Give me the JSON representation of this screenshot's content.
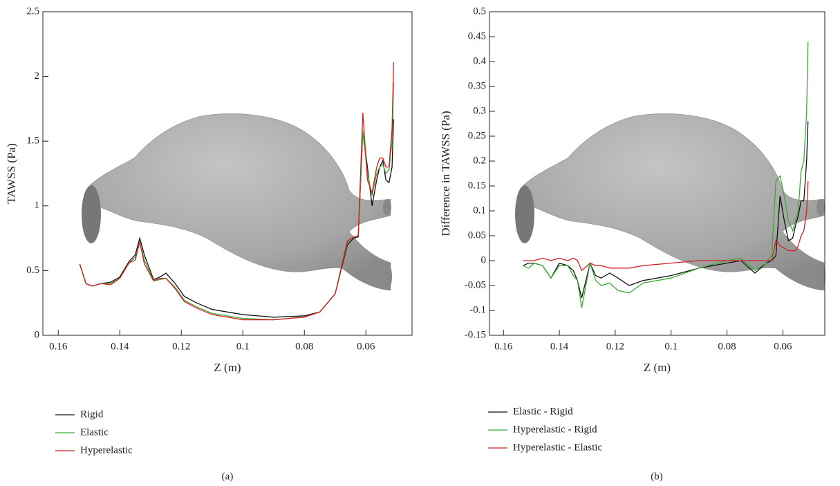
{
  "chart_data": [
    {
      "type": "line",
      "caption": "(a)",
      "x_label": "Z (m)",
      "y_label": "TAWSS (Pa)",
      "xlim": [
        0.165,
        0.045
      ],
      "xticks": [
        0.16,
        0.14,
        0.12,
        0.1,
        0.08,
        0.06
      ],
      "ylim": [
        0,
        2.5
      ],
      "yticks": [
        0,
        0.5,
        1,
        1.5,
        2,
        2.5
      ],
      "x": [
        0.153,
        0.151,
        0.149,
        0.146,
        0.143,
        0.14,
        0.137,
        0.135,
        0.1335,
        0.132,
        0.129,
        0.127,
        0.125,
        0.122,
        0.119,
        0.115,
        0.11,
        0.1,
        0.09,
        0.08,
        0.075,
        0.07,
        0.066,
        0.064,
        0.0625,
        0.061,
        0.0595,
        0.058,
        0.0565,
        0.0555,
        0.0545,
        0.0535,
        0.0525,
        0.0515,
        0.051
      ],
      "series": [
        {
          "name": "Rigid",
          "color": "#111111",
          "values": [
            0.55,
            0.4,
            0.38,
            0.4,
            0.41,
            0.45,
            0.57,
            0.62,
            0.75,
            0.62,
            0.43,
            0.45,
            0.48,
            0.4,
            0.3,
            0.25,
            0.2,
            0.16,
            0.14,
            0.15,
            0.18,
            0.32,
            0.7,
            0.75,
            0.76,
            1.57,
            1.3,
            1.0,
            1.2,
            1.3,
            1.35,
            1.2,
            1.18,
            1.3,
            1.67
          ]
        },
        {
          "name": "Elastic",
          "color": "#3aaa35",
          "values": [
            0.55,
            0.4,
            0.38,
            0.4,
            0.4,
            0.44,
            0.56,
            0.6,
            0.72,
            0.58,
            0.42,
            0.43,
            0.44,
            0.37,
            0.27,
            0.22,
            0.17,
            0.13,
            0.12,
            0.14,
            0.18,
            0.32,
            0.72,
            0.76,
            0.77,
            1.58,
            1.25,
            1.08,
            1.25,
            1.3,
            1.32,
            1.25,
            1.28,
            1.5,
            1.95
          ]
        },
        {
          "name": "Hyperelastic",
          "color": "#d42020",
          "values": [
            0.55,
            0.4,
            0.38,
            0.4,
            0.39,
            0.44,
            0.56,
            0.58,
            0.72,
            0.55,
            0.42,
            0.44,
            0.44,
            0.36,
            0.26,
            0.21,
            0.16,
            0.12,
            0.12,
            0.14,
            0.18,
            0.32,
            0.73,
            0.76,
            0.77,
            1.72,
            1.2,
            1.1,
            1.3,
            1.37,
            1.37,
            1.3,
            1.3,
            1.6,
            2.11
          ]
        }
      ]
    },
    {
      "type": "line",
      "caption": "(b)",
      "x_label": "Z (m)",
      "y_label": "Difference in TAWSS (Pa)",
      "xlim": [
        0.165,
        0.045
      ],
      "xticks": [
        0.16,
        0.14,
        0.12,
        0.1,
        0.08,
        0.06
      ],
      "ylim": [
        -0.15,
        0.5
      ],
      "yticks": [
        -0.15,
        -0.1,
        -0.05,
        0,
        0.05,
        0.1,
        0.15,
        0.2,
        0.25,
        0.3,
        0.35,
        0.4,
        0.45,
        0.5
      ],
      "x": [
        0.153,
        0.151,
        0.149,
        0.146,
        0.143,
        0.14,
        0.137,
        0.135,
        0.1335,
        0.132,
        0.129,
        0.127,
        0.125,
        0.122,
        0.119,
        0.115,
        0.11,
        0.1,
        0.09,
        0.08,
        0.075,
        0.07,
        0.066,
        0.064,
        0.0625,
        0.061,
        0.0595,
        0.058,
        0.0565,
        0.0555,
        0.0545,
        0.0535,
        0.0525,
        0.0515,
        0.051
      ],
      "series": [
        {
          "name": "Elastic - Rigid",
          "color": "#111111",
          "values": [
            -0.01,
            -0.005,
            -0.005,
            -0.01,
            -0.035,
            -0.005,
            -0.01,
            -0.02,
            -0.04,
            -0.075,
            -0.005,
            -0.03,
            -0.035,
            -0.025,
            -0.035,
            -0.05,
            -0.04,
            -0.03,
            -0.015,
            -0.005,
            0,
            -0.025,
            -0.005,
            0,
            0.01,
            0.13,
            0.08,
            0.04,
            0.045,
            0.07,
            0.09,
            0.12,
            0.12,
            0.2,
            0.28
          ]
        },
        {
          "name": "Hyperelastic - Rigid",
          "color": "#3aaa35",
          "values": [
            -0.01,
            -0.015,
            -0.005,
            -0.01,
            -0.035,
            -0.01,
            -0.01,
            -0.03,
            -0.04,
            -0.095,
            -0.005,
            -0.04,
            -0.05,
            -0.045,
            -0.06,
            -0.065,
            -0.045,
            -0.035,
            -0.015,
            0,
            0.005,
            -0.02,
            -0.005,
            0.01,
            0.16,
            0.17,
            0.13,
            0.08,
            0.06,
            0.08,
            0.1,
            0.18,
            0.2,
            0.3,
            0.44
          ]
        },
        {
          "name": "Hyperelastic - Elastic",
          "color": "#d42020",
          "values": [
            0,
            0,
            0,
            0.005,
            0,
            0.005,
            0,
            0.005,
            0,
            -0.02,
            -0.005,
            -0.01,
            -0.01,
            -0.015,
            -0.015,
            -0.015,
            -0.01,
            -0.005,
            0,
            0,
            0,
            0,
            0,
            0,
            0.04,
            0.03,
            0.025,
            0.02,
            0.02,
            0.02,
            0.03,
            0.05,
            0.06,
            0.1,
            0.16
          ]
        }
      ]
    }
  ]
}
